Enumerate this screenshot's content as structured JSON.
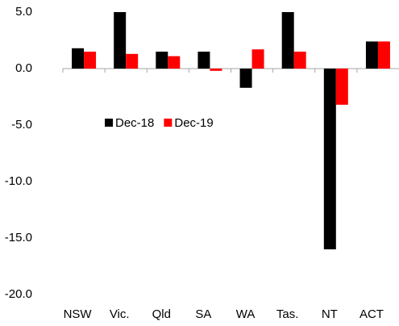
{
  "chart_data": {
    "type": "bar",
    "categories": [
      "NSW",
      "Vic.",
      "Qld",
      "SA",
      "WA",
      "Tas.",
      "NT",
      "ACT"
    ],
    "series": [
      {
        "name": "Dec-18",
        "color": "#000000",
        "values": [
          1.8,
          5.0,
          1.5,
          1.5,
          -1.7,
          5.0,
          -16.0,
          2.4
        ]
      },
      {
        "name": "Dec-19",
        "color": "#ff0000",
        "values": [
          1.5,
          1.3,
          1.1,
          -0.2,
          1.7,
          1.5,
          -3.2,
          2.4
        ]
      }
    ],
    "ylim": [
      -20,
      5
    ],
    "yticks": [
      {
        "value": -20,
        "label": "-20.0"
      },
      {
        "value": -15,
        "label": "-15.0"
      },
      {
        "value": -10,
        "label": "-10.0"
      },
      {
        "value": -5,
        "label": "-5.0"
      },
      {
        "value": 0,
        "label": "0.0"
      },
      {
        "value": 5,
        "label": "5.0"
      }
    ],
    "legend": "upper left"
  }
}
